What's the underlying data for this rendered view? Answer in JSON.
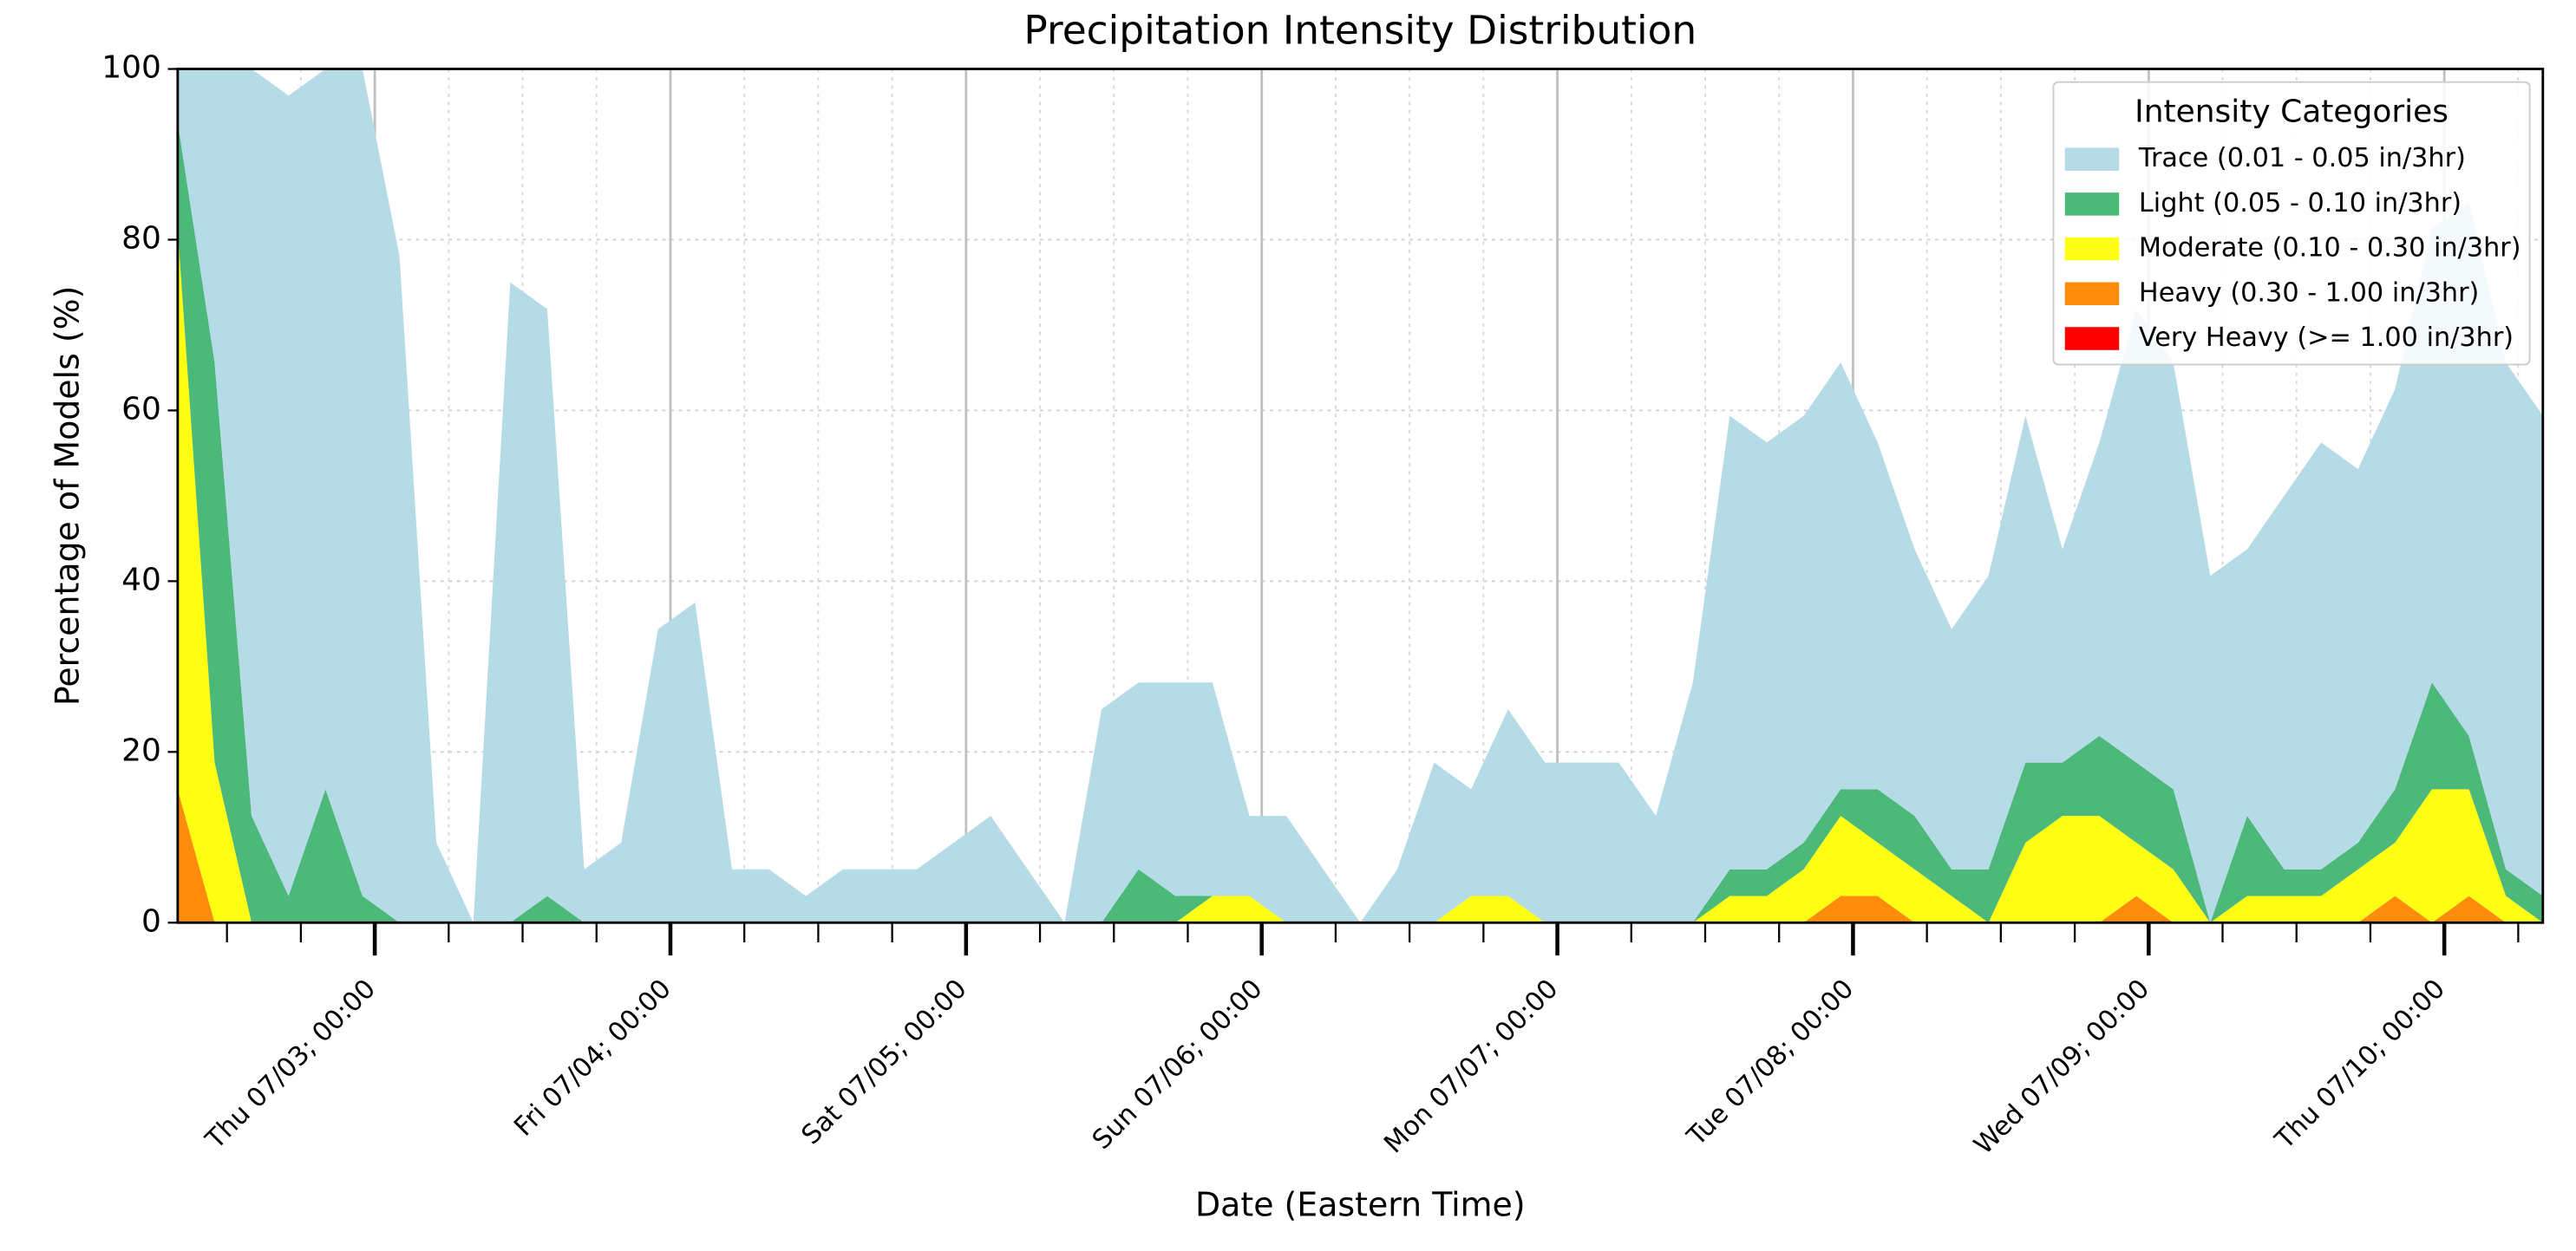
{
  "chart_data": {
    "type": "stacked_area",
    "title": "Precipitation Intensity Distribution",
    "x_label": "Date (Eastern Time)",
    "y_label": "Percentage of Models (%)",
    "x": [
      "07/02 08:00",
      "07/02 11:00",
      "07/02 14:00",
      "07/02 17:00",
      "07/02 20:00",
      "07/02 23:00",
      "07/03 02:00",
      "07/03 05:00",
      "07/03 08:00",
      "07/03 11:00",
      "07/03 14:00",
      "07/03 17:00",
      "07/03 20:00",
      "07/03 23:00",
      "07/04 02:00",
      "07/04 05:00",
      "07/04 08:00",
      "07/04 11:00",
      "07/04 14:00",
      "07/04 17:00",
      "07/04 20:00",
      "07/04 23:00",
      "07/05 02:00",
      "07/05 05:00",
      "07/05 08:00",
      "07/05 11:00",
      "07/05 14:00",
      "07/05 17:00",
      "07/05 20:00",
      "07/05 23:00",
      "07/06 02:00",
      "07/06 05:00",
      "07/06 08:00",
      "07/06 11:00",
      "07/06 14:00",
      "07/06 17:00",
      "07/06 20:00",
      "07/06 23:00",
      "07/07 02:00",
      "07/07 05:00",
      "07/07 08:00",
      "07/07 11:00",
      "07/07 14:00",
      "07/07 17:00",
      "07/07 20:00",
      "07/07 23:00",
      "07/08 02:00",
      "07/08 05:00",
      "07/08 08:00",
      "07/08 11:00",
      "07/08 14:00",
      "07/08 17:00",
      "07/08 20:00",
      "07/08 23:00",
      "07/09 02:00",
      "07/09 05:00",
      "07/09 08:00",
      "07/09 11:00",
      "07/09 14:00",
      "07/09 17:00",
      "07/09 20:00",
      "07/09 23:00",
      "07/10 02:00",
      "07/10 05:00",
      "07/10 08:00"
    ],
    "series": [
      {
        "name": "Trace (0.01 - 0.05 in/3hr)",
        "color": "#b5dbe6",
        "values": [
          6.25,
          34.375,
          87.5,
          93.75,
          84.375,
          96.875,
          78.125,
          9.375,
          0,
          75,
          68.75,
          6.25,
          9.375,
          34.375,
          37.5,
          6.25,
          6.25,
          3.125,
          6.25,
          6.25,
          6.25,
          9.375,
          12.5,
          6.25,
          0,
          25,
          21.875,
          25,
          25,
          9.375,
          12.5,
          6.25,
          0,
          6.25,
          18.75,
          12.5,
          21.875,
          18.75,
          18.75,
          18.75,
          12.5,
          28.125,
          53.125,
          50,
          50,
          50,
          40.625,
          31.25,
          28.125,
          34.375,
          40.625,
          25,
          34.375,
          53.125,
          50,
          40.625,
          31.25,
          43.75,
          50,
          43.75,
          46.875,
          53.125,
          62.5,
          59.375,
          56.25
        ]
      },
      {
        "name": "Light (0.05 - 0.10 in/3hr)",
        "color": "#4cb97b",
        "values": [
          12.5,
          46.875,
          12.5,
          3.125,
          15.625,
          3.125,
          0,
          0,
          0,
          0,
          3.125,
          0,
          0,
          0,
          0,
          0,
          0,
          0,
          0,
          0,
          0,
          0,
          0,
          0,
          0,
          0,
          6.25,
          3.125,
          0,
          0,
          0,
          0,
          0,
          0,
          0,
          0,
          0,
          0,
          0,
          0,
          0,
          0,
          3.125,
          3.125,
          3.125,
          3.125,
          6.25,
          6.25,
          3.125,
          6.25,
          9.375,
          6.25,
          9.375,
          9.375,
          9.375,
          0,
          9.375,
          3.125,
          3.125,
          3.125,
          6.25,
          12.5,
          6.25,
          3.125,
          3.125
        ]
      },
      {
        "name": "Moderate (0.10 - 0.30 in/3hr)",
        "color": "#ffff14",
        "values": [
          65.625,
          18.75,
          0,
          0,
          0,
          0,
          0,
          0,
          0,
          0,
          0,
          0,
          0,
          0,
          0,
          0,
          0,
          0,
          0,
          0,
          0,
          0,
          0,
          0,
          0,
          0,
          0,
          0,
          3.125,
          3.125,
          0,
          0,
          0,
          0,
          0,
          3.125,
          3.125,
          0,
          0,
          0,
          0,
          0,
          3.125,
          3.125,
          6.25,
          9.375,
          6.25,
          6.25,
          3.125,
          0,
          9.375,
          12.5,
          12.5,
          6.25,
          6.25,
          0,
          3.125,
          3.125,
          3.125,
          6.25,
          6.25,
          15.625,
          12.5,
          3.125,
          0
        ]
      },
      {
        "name": "Heavy (0.30 - 1.00 in/3hr)",
        "color": "#ff8c0a",
        "values": [
          15.625,
          0,
          0,
          0,
          0,
          0,
          0,
          0,
          0,
          0,
          0,
          0,
          0,
          0,
          0,
          0,
          0,
          0,
          0,
          0,
          0,
          0,
          0,
          0,
          0,
          0,
          0,
          0,
          0,
          0,
          0,
          0,
          0,
          0,
          0,
          0,
          0,
          0,
          0,
          0,
          0,
          0,
          0,
          0,
          0,
          3.125,
          3.125,
          0,
          0,
          0,
          0,
          0,
          0,
          3.125,
          0,
          0,
          0,
          0,
          0,
          0,
          3.125,
          0,
          3.125,
          0,
          0
        ]
      },
      {
        "name": "Very Heavy (>= 1.00 in/3hr)",
        "color": "#ff0000",
        "values": [
          0,
          0,
          0,
          0,
          0,
          0,
          0,
          0,
          0,
          0,
          0,
          0,
          0,
          0,
          0,
          0,
          0,
          0,
          0,
          0,
          0,
          0,
          0,
          0,
          0,
          0,
          0,
          0,
          0,
          0,
          0,
          0,
          0,
          0,
          0,
          0,
          0,
          0,
          0,
          0,
          0,
          0,
          0,
          0,
          0,
          0,
          0,
          0,
          0,
          0,
          0,
          0,
          0,
          0,
          0,
          0,
          0,
          0,
          0,
          0,
          0,
          0,
          0,
          0,
          0
        ]
      }
    ],
    "xlim": [
      "07/02 08:00",
      "07/10 08:00"
    ],
    "xticks": [
      {
        "value": "07/03 00:00",
        "label": "Thu 07/03; 00:00"
      },
      {
        "value": "07/04 00:00",
        "label": "Fri 07/04; 00:00"
      },
      {
        "value": "07/05 00:00",
        "label": "Sat 07/05; 00:00"
      },
      {
        "value": "07/06 00:00",
        "label": "Sun 07/06; 00:00"
      },
      {
        "value": "07/07 00:00",
        "label": "Mon 07/07; 00:00"
      },
      {
        "value": "07/08 00:00",
        "label": "Tue 07/08; 00:00"
      },
      {
        "value": "07/09 00:00",
        "label": "Wed 07/09; 00:00"
      },
      {
        "value": "07/10 00:00",
        "label": "Thu 07/10; 00:00"
      }
    ],
    "xminorticks": [
      "07/02 12:00",
      "07/02 18:00",
      "07/03 06:00",
      "07/03 12:00",
      "07/03 18:00",
      "07/04 06:00",
      "07/04 12:00",
      "07/04 18:00",
      "07/05 06:00",
      "07/05 12:00",
      "07/05 18:00",
      "07/06 06:00",
      "07/06 12:00",
      "07/06 18:00",
      "07/07 06:00",
      "07/07 12:00",
      "07/07 18:00",
      "07/08 06:00",
      "07/08 12:00",
      "07/08 18:00",
      "07/09 06:00",
      "07/09 12:00",
      "07/09 18:00",
      "07/10 06:00"
    ],
    "ylim": [
      0,
      100
    ],
    "yticks": [
      0,
      20,
      40,
      60,
      80,
      100
    ],
    "grid": true,
    "legend_title": "Intensity Categories",
    "legend_position": "upper right"
  }
}
